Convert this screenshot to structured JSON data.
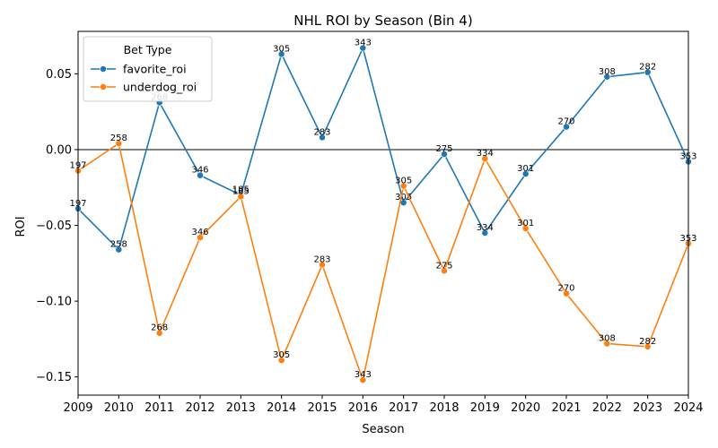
{
  "chart_data": {
    "type": "line",
    "title": "NHL ROI by Season (Bin 4)",
    "xlabel": "Season",
    "ylabel": "ROI",
    "x": [
      2009,
      2010,
      2011,
      2012,
      2013,
      2014,
      2015,
      2016,
      2017,
      2018,
      2019,
      2020,
      2021,
      2022,
      2023,
      2024
    ],
    "xlim": [
      2009,
      2024
    ],
    "ylim": [
      -0.162,
      0.078
    ],
    "yticks": [
      -0.15,
      -0.1,
      -0.05,
      0.0,
      0.05
    ],
    "ytick_labels": [
      "−0.15",
      "−0.10",
      "−0.05",
      "0.00",
      "0.05"
    ],
    "xtick_labels": [
      "2009",
      "2010",
      "2011",
      "2012",
      "2013",
      "2014",
      "2015",
      "2016",
      "2017",
      "2018",
      "2019",
      "2020",
      "2021",
      "2022",
      "2023",
      "2024"
    ],
    "reference_line_y": 0,
    "grid": false,
    "legend": {
      "title": "Bet Type",
      "placement": "top-left"
    },
    "series": [
      {
        "name": "favorite_roi",
        "color": "#1f77b4",
        "values": [
          -0.039,
          -0.066,
          0.031,
          -0.017,
          -0.03,
          0.063,
          0.008,
          0.067,
          -0.035,
          -0.003,
          -0.055,
          -0.016,
          0.015,
          0.048,
          0.051,
          -0.008
        ],
        "labels": [
          "197",
          "258",
          "268",
          "346",
          "185",
          "305",
          "283",
          "343",
          "305",
          "275",
          "334",
          "301",
          "270",
          "308",
          "282",
          "353"
        ]
      },
      {
        "name": "underdog_roi",
        "color": "#ff7f0e",
        "values": [
          -0.014,
          0.004,
          -0.121,
          -0.058,
          -0.031,
          -0.139,
          -0.076,
          -0.152,
          -0.024,
          -0.08,
          -0.006,
          -0.052,
          -0.095,
          -0.128,
          -0.13,
          -0.062
        ],
        "labels": [
          "197",
          "258",
          "268",
          "346",
          "185",
          "305",
          "283",
          "343",
          "305",
          "275",
          "334",
          "301",
          "270",
          "308",
          "282",
          "353"
        ]
      }
    ]
  }
}
